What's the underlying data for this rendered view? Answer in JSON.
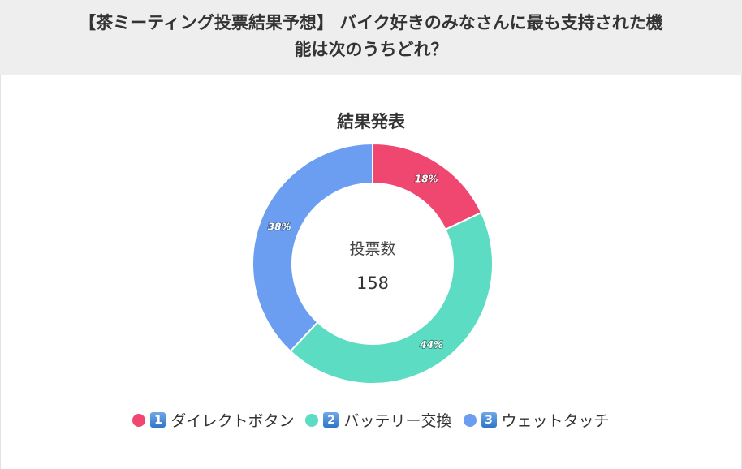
{
  "header": {
    "line1": "【茶ミーティング投票結果予想】 バイク好きのみなさんに最も支持された機",
    "line2": "能は次のうちどれ？"
  },
  "chart_title": "結果発表",
  "center": {
    "label": "投票数",
    "value": "158"
  },
  "chart_data": {
    "type": "pie",
    "variant": "donut",
    "title": "結果発表",
    "total_votes": 158,
    "slices": [
      {
        "label": "ダイレクトボタン",
        "number": "1",
        "value": 18,
        "value_label": "18%",
        "color": "#ef476f"
      },
      {
        "label": "バッテリー交換",
        "number": "2",
        "value": 44,
        "value_label": "44%",
        "color": "#5cdcc2"
      },
      {
        "label": "ウェットタッチ",
        "number": "3",
        "value": 38,
        "value_label": "38%",
        "color": "#6b9ef0"
      }
    ],
    "legend_position": "bottom",
    "start_angle": "top",
    "direction": "clockwise"
  }
}
